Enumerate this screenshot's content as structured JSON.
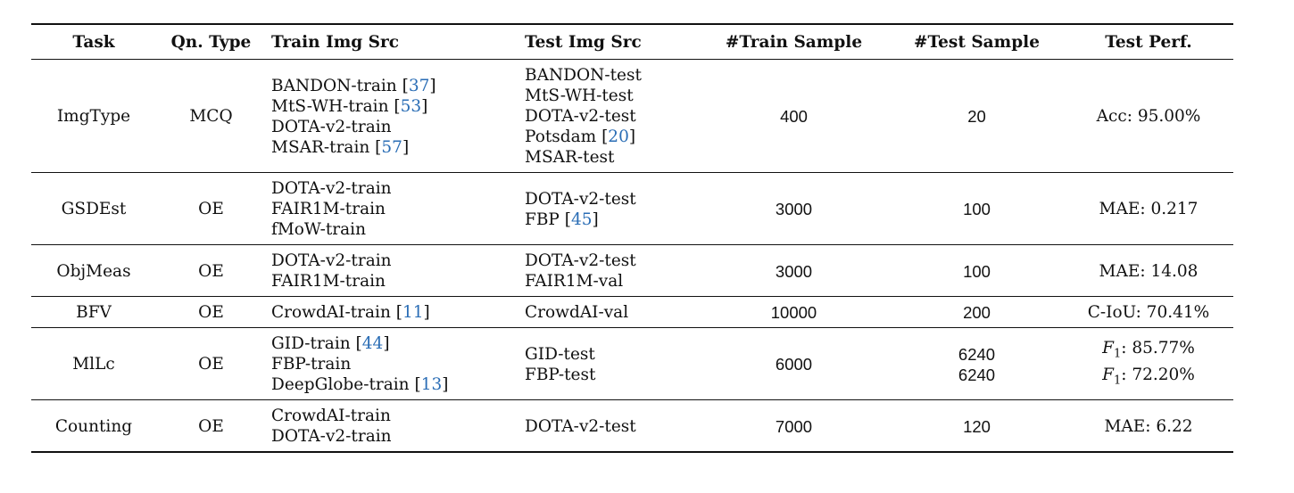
{
  "headers": {
    "task": "Task",
    "qn_type": "Qn. Type",
    "train_src": "Train Img Src",
    "test_src": "Test Img Src",
    "train_sample": "#Train Sample",
    "test_sample": "#Test Sample",
    "test_perf": "Test Perf."
  },
  "rows": [
    {
      "task": "ImgType",
      "qn_type": "MCQ",
      "train": [
        {
          "name": "BANDON-train",
          "cite": "37"
        },
        {
          "name": "MtS-WH-train",
          "cite": "53"
        },
        {
          "name": "DOTA-v2-train",
          "cite": ""
        },
        {
          "name": "MSAR-train",
          "cite": "57"
        }
      ],
      "test": [
        {
          "name": "BANDON-test",
          "cite": ""
        },
        {
          "name": "MtS-WH-test",
          "cite": ""
        },
        {
          "name": "DOTA-v2-test",
          "cite": ""
        },
        {
          "name": "Potsdam",
          "cite": "20"
        },
        {
          "name": "MSAR-test",
          "cite": ""
        }
      ],
      "train_sample": "400",
      "test_sample": [
        "20"
      ],
      "perf": [
        {
          "f1": false,
          "text": "Acc: 95.00%"
        }
      ]
    },
    {
      "task": "GSDEst",
      "qn_type": "OE",
      "train": [
        {
          "name": "DOTA-v2-train",
          "cite": ""
        },
        {
          "name": "FAIR1M-train",
          "cite": ""
        },
        {
          "name": "fMoW-train",
          "cite": ""
        }
      ],
      "test": [
        {
          "name": "DOTA-v2-test",
          "cite": ""
        },
        {
          "name": "FBP",
          "cite": "45"
        }
      ],
      "train_sample": "3000",
      "test_sample": [
        "100"
      ],
      "perf": [
        {
          "f1": false,
          "text": "MAE: 0.217"
        }
      ]
    },
    {
      "task": "ObjMeas",
      "qn_type": "OE",
      "train": [
        {
          "name": "DOTA-v2-train",
          "cite": ""
        },
        {
          "name": "FAIR1M-train",
          "cite": ""
        }
      ],
      "test": [
        {
          "name": "DOTA-v2-test",
          "cite": ""
        },
        {
          "name": "FAIR1M-val",
          "cite": ""
        }
      ],
      "train_sample": "3000",
      "test_sample": [
        "100"
      ],
      "perf": [
        {
          "f1": false,
          "text": "MAE: 14.08"
        }
      ]
    },
    {
      "task": "BFV",
      "qn_type": "OE",
      "train": [
        {
          "name": "CrowdAI-train",
          "cite": "11"
        }
      ],
      "test": [
        {
          "name": "CrowdAI-val",
          "cite": ""
        }
      ],
      "train_sample": "10000",
      "test_sample": [
        "200"
      ],
      "perf": [
        {
          "f1": false,
          "text": "C-IoU: 70.41%"
        }
      ]
    },
    {
      "task": "MlLc",
      "qn_type": "OE",
      "train": [
        {
          "name": "GID-train",
          "cite": "44"
        },
        {
          "name": "FBP-train",
          "cite": ""
        },
        {
          "name": "DeepGlobe-train",
          "cite": "13"
        }
      ],
      "test": [
        {
          "name": "GID-test",
          "cite": ""
        },
        {
          "name": "FBP-test",
          "cite": ""
        }
      ],
      "train_sample": "6000",
      "test_sample": [
        "6240",
        "6240"
      ],
      "perf": [
        {
          "f1": true,
          "text": ": 85.77%"
        },
        {
          "f1": true,
          "text": ": 72.20%"
        }
      ]
    },
    {
      "task": "Counting",
      "qn_type": "OE",
      "train": [
        {
          "name": "CrowdAI-train",
          "cite": ""
        },
        {
          "name": "DOTA-v2-train",
          "cite": ""
        }
      ],
      "test": [
        {
          "name": "DOTA-v2-test",
          "cite": ""
        }
      ],
      "train_sample": "7000",
      "test_sample": [
        "120"
      ],
      "perf": [
        {
          "f1": false,
          "text": "MAE: 6.22"
        }
      ]
    }
  ]
}
